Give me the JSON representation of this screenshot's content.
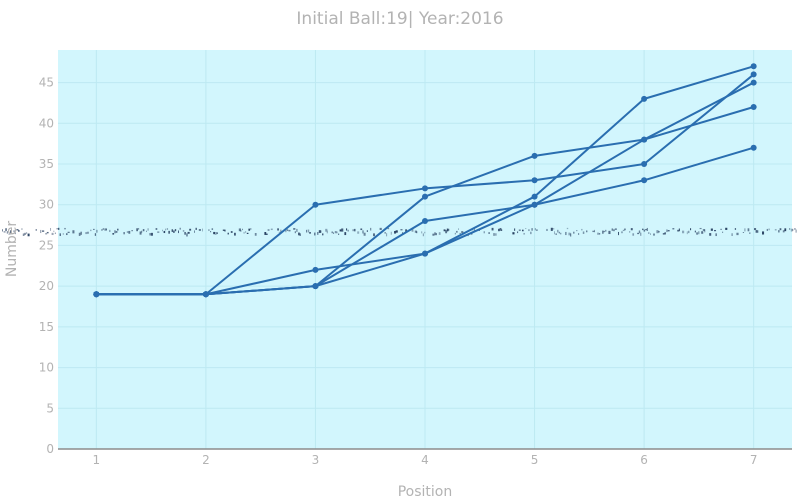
{
  "chart_data": {
    "type": "line",
    "title": "Initial Ball:19| Year:2016",
    "xlabel": "Position",
    "ylabel": "Number",
    "x": [
      1,
      2,
      3,
      4,
      5,
      6,
      7
    ],
    "xlim": [
      0.65,
      7.35
    ],
    "ylim": [
      0,
      49
    ],
    "x_ticks": [
      "1",
      "2",
      "3",
      "4",
      "5",
      "6",
      "7"
    ],
    "y_ticks": [
      "0",
      "5",
      "10",
      "15",
      "20",
      "25",
      "30",
      "35",
      "40",
      "45"
    ],
    "grid": true,
    "legend": "none",
    "colors": {
      "plot_background": "#d2f6fd",
      "series": "#2a6eb0",
      "grid": "#bde9f2",
      "zero_line": "#8c8c8c",
      "text": "#b3b3b3"
    },
    "series": [
      {
        "values": [
          19,
          19,
          30,
          32,
          33,
          35,
          46
        ]
      },
      {
        "values": [
          19,
          19,
          22,
          24,
          31,
          43,
          47
        ]
      },
      {
        "values": [
          19,
          19,
          20,
          24,
          30,
          38,
          45
        ]
      },
      {
        "values": [
          19,
          19,
          20,
          28,
          30,
          33,
          37
        ]
      },
      {
        "values": [
          19,
          19,
          20,
          31,
          36,
          38,
          42
        ]
      }
    ]
  }
}
